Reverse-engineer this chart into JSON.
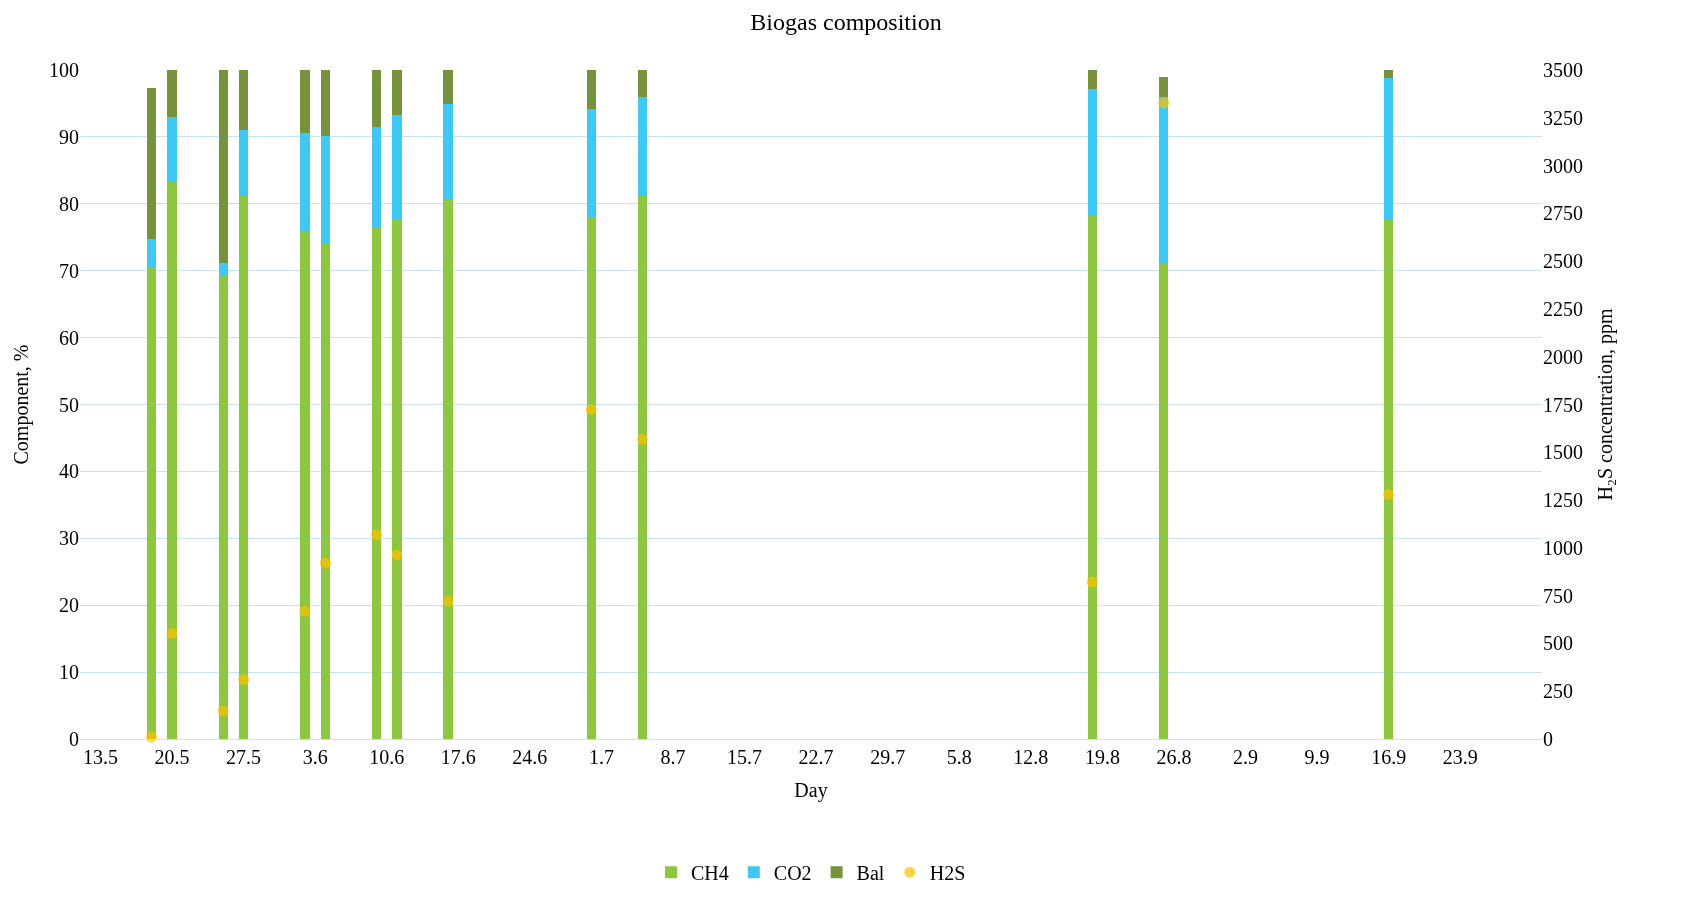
{
  "chart_data": {
    "type": "bar",
    "stacked": true,
    "title": "Biogas composition",
    "xlabel": "Day",
    "ylabel": "Component, %",
    "y2label": "H₂S concentration, ppm",
    "x": [
      "--05-18",
      "--05-20",
      "--05-25",
      "--05-27",
      "--06-02",
      "--06-04",
      "--06-09",
      "--06-11",
      "--06-16",
      "--06-30",
      "--07-05",
      "--08-18",
      "--08-25",
      "--09-16"
    ],
    "series": [
      {
        "name": "CH4",
        "color": "#8dc63f",
        "values": [
          70.4,
          83.2,
          69.2,
          81.2,
          76.0,
          74.0,
          76.5,
          77.8,
          80.6,
          77.9,
          81.2,
          78.4,
          71.0,
          77.6
        ]
      },
      {
        "name": "CO2",
        "color": "#40c8f4",
        "values": [
          4.3,
          9.8,
          1.9,
          9.8,
          14.6,
          16.1,
          15.0,
          15.4,
          14.3,
          16.3,
          14.8,
          18.8,
          24.9,
          21.2
        ]
      },
      {
        "name": "Bal",
        "color": "#76923c",
        "values": [
          22.6,
          7.0,
          28.9,
          9.0,
          9.4,
          9.9,
          8.5,
          6.8,
          5.1,
          5.8,
          4.0,
          2.8,
          3.1,
          1.2
        ]
      },
      {
        "name": "H2S",
        "color": "#ffc000",
        "type": "scatter",
        "axis": "y2",
        "marker": "circle",
        "values": [
          10,
          553,
          147,
          311,
          669,
          921,
          1068,
          963,
          721,
          1724,
          1568,
          821,
          3328,
          1279
        ]
      }
    ],
    "xlim": [
      "--05-11",
      "--10-01"
    ],
    "xticks": [
      {
        "value": "--05-13",
        "label": "13.5"
      },
      {
        "value": "--05-20",
        "label": "20.5"
      },
      {
        "value": "--05-27",
        "label": "27.5"
      },
      {
        "value": "--06-03",
        "label": "3.6"
      },
      {
        "value": "--06-10",
        "label": "10.6"
      },
      {
        "value": "--06-17",
        "label": "17.6"
      },
      {
        "value": "--06-24",
        "label": "24.6"
      },
      {
        "value": "--07-01",
        "label": "1.7"
      },
      {
        "value": "--07-08",
        "label": "8.7"
      },
      {
        "value": "--07-15",
        "label": "15.7"
      },
      {
        "value": "--07-22",
        "label": "22.7"
      },
      {
        "value": "--07-29",
        "label": "29.7"
      },
      {
        "value": "--08-05",
        "label": "5.8"
      },
      {
        "value": "--08-12",
        "label": "12.8"
      },
      {
        "value": "--08-19",
        "label": "19.8"
      },
      {
        "value": "--08-26",
        "label": "26.8"
      },
      {
        "value": "--09-02",
        "label": "2.9"
      },
      {
        "value": "--09-09",
        "label": "9.9"
      },
      {
        "value": "--09-16",
        "label": "16.9"
      },
      {
        "value": "--09-23",
        "label": "23.9"
      }
    ],
    "ylim": [
      0,
      100
    ],
    "yticks": [
      0,
      10,
      20,
      30,
      40,
      50,
      60,
      70,
      80,
      90,
      100
    ],
    "y2lim": [
      0,
      3500
    ],
    "y2ticks": [
      0,
      250,
      500,
      750,
      1000,
      1250,
      1500,
      1750,
      2000,
      2250,
      2500,
      2750,
      3000,
      3250,
      3500
    ],
    "grid": "y",
    "legend": "bottom"
  }
}
